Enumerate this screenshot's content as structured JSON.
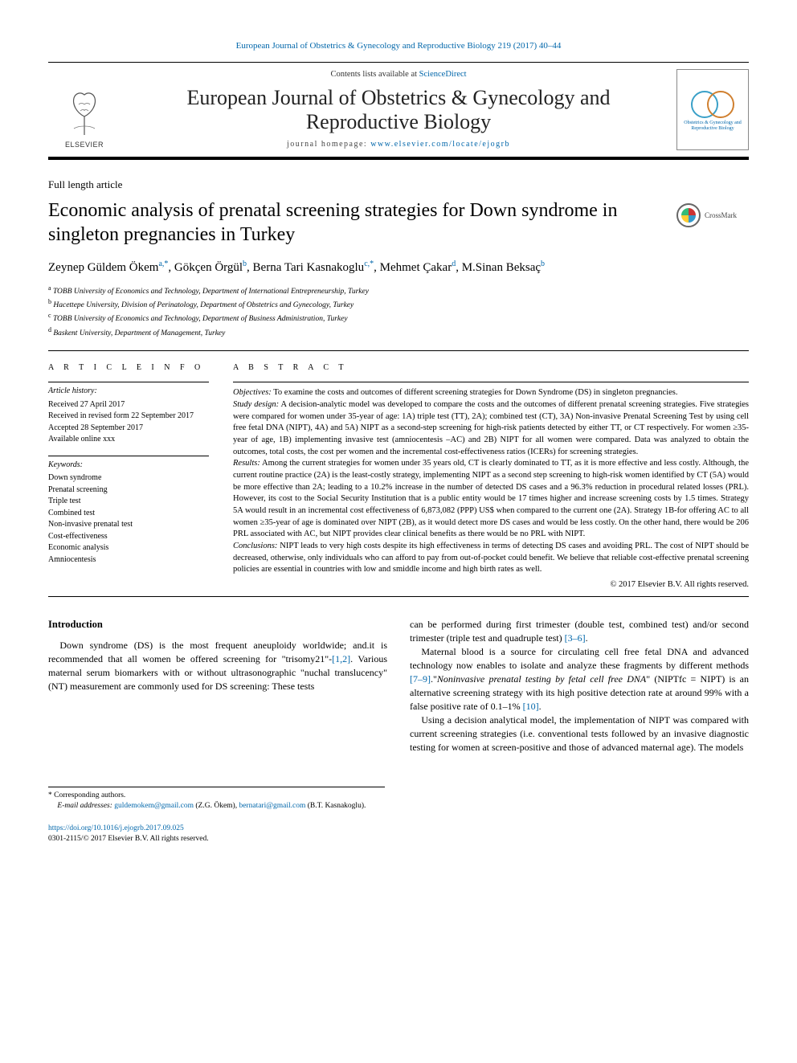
{
  "running_header": "European Journal of Obstetrics & Gynecology and Reproductive Biology 219 (2017) 40–44",
  "masthead": {
    "contents_prefix": "Contents lists available at ",
    "contents_link": "ScienceDirect",
    "journal_name": "European Journal of Obstetrics & Gynecology and Reproductive Biology",
    "homepage_prefix": "journal homepage: ",
    "homepage_url": "www.elsevier.com/locate/ejogrb",
    "publisher_logo_text": "ELSEVIER",
    "journal_logo_text": "Obstetrics & Gynecology and Reproductive Biology"
  },
  "crossmark_label": "CrossMark",
  "article_type": "Full length article",
  "title": "Economic analysis of prenatal screening strategies for Down syndrome in singleton pregnancies in Turkey",
  "authors_html": "Zeynep Güldem Ökem<sup>a,*</sup>, Gökçen Örgül<sup>b</sup>, Berna Tari Kasnakoglu<sup>c,*</sup>, Mehmet Çakar<sup>d</sup>, M.Sinan Beksaç<sup>b</sup>",
  "affiliations": [
    "a TOBB University of Economics and Technology, Department of International Entrepreneurship, Turkey",
    "b Hacettepe University, Division of Perinatology, Department of Obstetrics and Gynecology, Turkey",
    "c TOBB University of Economics and Technology, Department of Business Administration, Turkey",
    "d Baskent University, Department of Management, Turkey"
  ],
  "article_info": {
    "header": "A R T I C L E   I N F O",
    "history_header": "Article history:",
    "history": [
      "Received 27 April 2017",
      "Received in revised form 22 September 2017",
      "Accepted 28 September 2017",
      "Available online xxx"
    ],
    "keywords_header": "Keywords:",
    "keywords": [
      "Down syndrome",
      "Prenatal screening",
      "Triple test",
      "Combined test",
      "Non-invasive prenatal test",
      "Cost-effectiveness",
      "Economic analysis",
      "Amniocentesis"
    ]
  },
  "abstract": {
    "header": "A B S T R A C T",
    "objectives_label": "Objectives:",
    "objectives": "To examine the costs and outcomes of different screening strategies for Down Syndrome (DS) in singleton pregnancies.",
    "design_label": "Study design:",
    "design": "A decision-analytic model was developed to compare the costs and the outcomes of different prenatal screening strategies. Five strategies were compared for women under 35-year of age: 1A) triple test (TT), 2A); combined test (CT), 3A) Non-invasive Prenatal Screening Test by using cell free fetal DNA (NIPT), 4A) and 5A) NIPT as a second-step screening for high-risk patients detected by either TT, or CT respectively. For women ≥35-year of age, 1B) implementing invasive test (amniocentesis –AC) and 2B) NIPT for all women were compared. Data was analyzed to obtain the outcomes, total costs, the cost per women and the incremental cost-effectiveness ratios (ICERs) for screening strategies.",
    "results_label": "Results:",
    "results": "Among the current strategies for women under 35 years old, CT is clearly dominated to TT, as it is more effective and less costly. Although, the current routine practice (2A) is the least-costly strategy, implementing NIPT as a second step screening to high-risk women identified by CT (5A) would be more effective than 2A; leading to a 10.2% increase in the number of detected DS cases and a 96.3% reduction in procedural related losses (PRL). However, its cost to the Social Security Institution that is a public entity would be 17 times higher and increase screening costs by 1.5 times. Strategy 5A would result in an incremental cost effectiveness of 6,873,082 (PPP) US$ when compared to the current one (2A). Strategy 1B-for offering AC to all women ≥35-year of age is dominated over NIPT (2B), as it would detect more DS cases and would be less costly. On the other hand, there would be 206 PRL associated with AC, but NIPT provides clear clinical benefits as there would be no PRL with NIPT.",
    "conclusions_label": "Conclusions:",
    "conclusions": "NIPT leads to very high costs despite its high effectiveness in terms of detecting DS cases and avoiding PRL. The cost of NIPT should be decreased, otherwise, only individuals who can afford to pay from out-of-pocket could benefit. We believe that reliable cost-effective prenatal screening policies are essential in countries with low and smiddle income and high birth rates as well.",
    "copyright": "© 2017 Elsevier B.V. All rights reserved."
  },
  "body": {
    "section_heading": "Introduction",
    "p1_a": "Down syndrome (DS) is the most frequent aneuploidy worldwide; and.it is recommended that all women be offered screening for \"trisomy21\"-",
    "p1_ref": "[1,2]",
    "p1_b": ". Various maternal serum biomarkers with or without ultrasonographic \"nuchal translucency\"(NT) measurement are commonly used for DS screening: These tests",
    "p2_a": "can be performed during first trimester (double test, combined test) and/or second trimester (triple test and quadruple test) ",
    "p2_ref": "[3–6]",
    "p2_b": ".",
    "p3_a": "Maternal blood is a source for circulating cell free fetal DNA and advanced technology now enables to isolate and analyze these fragments by different methods ",
    "p3_ref": "[7–9]",
    "p3_b": ".\"",
    "p3_c": "Noninvasive prenatal testing by fetal cell free DNA",
    "p3_d": "\" (NIPTfc = NIPT) is an alternative screening strategy with its high positive detection rate at around 99% with a false positive rate of 0.1–1% ",
    "p3_ref2": "[10]",
    "p3_e": ".",
    "p4": "Using a decision analytical model, the implementation of NIPT was compared with current screening strategies (i.e. conventional tests followed by an invasive diagnostic testing for women at screen-positive and those of advanced maternal age). The models"
  },
  "footnotes": {
    "corresponding": "* Corresponding authors.",
    "email_label": "E-mail addresses: ",
    "email1": "guldemokem@gmail.com",
    "email1_who": " (Z.G. Ökem), ",
    "email2": "bernatari@gmail.com",
    "email2_who": " (B.T. Kasnakoglu)."
  },
  "doi": {
    "url": "https://doi.org/10.1016/j.ejogrb.2017.09.025",
    "issn_line": "0301-2115/© 2017 Elsevier B.V. All rights reserved."
  },
  "colors": {
    "link": "#0066aa",
    "text": "#000000",
    "rule": "#000000"
  }
}
